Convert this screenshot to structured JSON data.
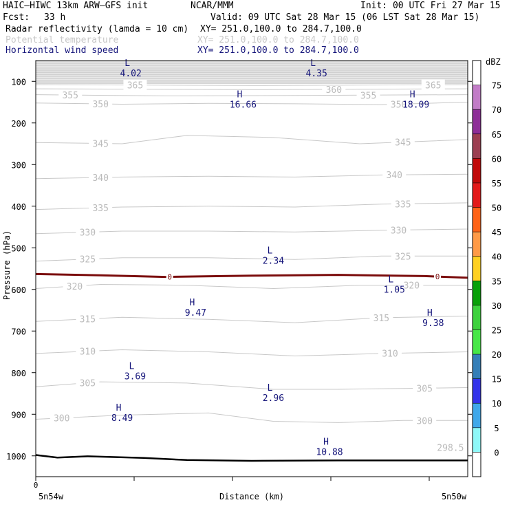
{
  "header": {
    "model": "HAIC–HIWC 13km ARW–GFS init",
    "org": "NCAR/MMM",
    "init": "Init: 00 UTC Fri 27 Mar 15",
    "fcst_label": "Fcst:",
    "fcst_value": "33 h",
    "valid": "Valid: 09 UTC Sat 28 Mar 15 (06 LST Sat 28 Mar 15)",
    "fields": [
      {
        "name": "Radar reflectivity (lamda = 10 cm)",
        "xy": "XY= 251.0,100.0 to 284.7,100.0",
        "color": "#000000"
      },
      {
        "name": "Potential temperature",
        "xy": "XY= 251.0,100.0 to 284.7,100.0",
        "color": "#c8c8c8"
      },
      {
        "name": "Horizontal wind speed",
        "xy": "XY= 251.0,100.0 to 284.7,100.0",
        "color": "#14147a"
      }
    ]
  },
  "chart_data": {
    "type": "cross-section contour",
    "ylabel": "Pressure (hPa)",
    "xlabel": "Distance (km)",
    "x_start_tick": "0",
    "x_left_label": "5n54w",
    "x_right_label": "5n50w",
    "ylim": [
      1050,
      50
    ],
    "y_ticks": [
      100,
      200,
      300,
      400,
      500,
      600,
      700,
      800,
      900,
      1000
    ],
    "theta_contours": [
      {
        "value": 300,
        "labels": [
          [
            0.06,
            300
          ],
          [
            0.9,
            300
          ]
        ],
        "points": [
          [
            0,
            0.862
          ],
          [
            0.2,
            0.852
          ],
          [
            0.4,
            0.847
          ],
          [
            0.55,
            0.867
          ],
          [
            0.7,
            0.87
          ],
          [
            0.85,
            0.865
          ],
          [
            1,
            0.865
          ]
        ]
      },
      {
        "value": 305,
        "labels": [
          [
            0.12,
            305
          ],
          [
            0.9,
            305
          ]
        ],
        "points": [
          [
            0,
            0.784
          ],
          [
            0.15,
            0.772
          ],
          [
            0.35,
            0.775
          ],
          [
            0.55,
            0.79
          ],
          [
            0.7,
            0.79
          ],
          [
            0.85,
            0.788
          ],
          [
            1,
            0.786
          ]
        ]
      },
      {
        "value": 310,
        "labels": [
          [
            0.12,
            310
          ],
          [
            0.82,
            310
          ]
        ],
        "points": [
          [
            0,
            0.704
          ],
          [
            0.2,
            0.695
          ],
          [
            0.4,
            0.7
          ],
          [
            0.6,
            0.71
          ],
          [
            0.8,
            0.704
          ],
          [
            1,
            0.7
          ]
        ]
      },
      {
        "value": 315,
        "labels": [
          [
            0.12,
            315
          ],
          [
            0.8,
            315
          ]
        ],
        "points": [
          [
            0,
            0.627
          ],
          [
            0.2,
            0.617
          ],
          [
            0.4,
            0.622
          ],
          [
            0.6,
            0.63
          ],
          [
            0.8,
            0.618
          ],
          [
            1,
            0.614
          ]
        ]
      },
      {
        "value": 320,
        "labels": [
          [
            0.09,
            320
          ],
          [
            0.87,
            320
          ]
        ],
        "points": [
          [
            0,
            0.548
          ],
          [
            0.15,
            0.538
          ],
          [
            0.35,
            0.54
          ],
          [
            0.55,
            0.548
          ],
          [
            0.75,
            0.54
          ],
          [
            1,
            0.54
          ]
        ]
      },
      {
        "value": 325,
        "labels": [
          [
            0.12,
            325
          ],
          [
            0.85,
            325
          ]
        ],
        "points": [
          [
            0,
            0.482
          ],
          [
            0.2,
            0.474
          ],
          [
            0.4,
            0.474
          ],
          [
            0.6,
            0.478
          ],
          [
            0.8,
            0.47
          ],
          [
            1,
            0.47
          ]
        ]
      },
      {
        "value": 330,
        "labels": [
          [
            0.12,
            330
          ],
          [
            0.84,
            330
          ]
        ],
        "points": [
          [
            0,
            0.416
          ],
          [
            0.2,
            0.41
          ],
          [
            0.4,
            0.41
          ],
          [
            0.6,
            0.412
          ],
          [
            0.8,
            0.408
          ],
          [
            1,
            0.405
          ]
        ]
      },
      {
        "value": 335,
        "labels": [
          [
            0.15,
            335
          ],
          [
            0.85,
            335
          ]
        ],
        "points": [
          [
            0,
            0.358
          ],
          [
            0.2,
            0.352
          ],
          [
            0.4,
            0.35
          ],
          [
            0.6,
            0.352
          ],
          [
            0.8,
            0.345
          ],
          [
            1,
            0.342
          ]
        ]
      },
      {
        "value": 340,
        "labels": [
          [
            0.15,
            340
          ],
          [
            0.83,
            340
          ]
        ],
        "points": [
          [
            0,
            0.284
          ],
          [
            0.2,
            0.28
          ],
          [
            0.4,
            0.278
          ],
          [
            0.6,
            0.28
          ],
          [
            0.8,
            0.275
          ],
          [
            1,
            0.273
          ]
        ]
      },
      {
        "value": 345,
        "labels": [
          [
            0.15,
            345
          ],
          [
            0.85,
            345
          ]
        ],
        "points": [
          [
            0,
            0.197
          ],
          [
            0.2,
            0.2
          ],
          [
            0.35,
            0.18
          ],
          [
            0.55,
            0.185
          ],
          [
            0.75,
            0.2
          ],
          [
            1,
            0.19
          ]
        ]
      },
      {
        "value": 350,
        "labels": [
          [
            0.15,
            350
          ],
          [
            0.84,
            350
          ]
        ],
        "points": [
          [
            0,
            0.102
          ],
          [
            0.2,
            0.105
          ],
          [
            0.4,
            0.103
          ],
          [
            0.6,
            0.104
          ],
          [
            0.8,
            0.106
          ],
          [
            1,
            0.1
          ]
        ]
      },
      {
        "value": 355,
        "labels": [
          [
            0.08,
            355
          ],
          [
            0.77,
            355
          ]
        ],
        "points": [
          [
            0,
            0.082
          ],
          [
            0.3,
            0.085
          ],
          [
            0.6,
            0.084
          ],
          [
            1,
            0.082
          ]
        ]
      },
      {
        "value": 360,
        "labels": [
          [
            0.69,
            360
          ]
        ],
        "points": [
          [
            0,
            0.068
          ],
          [
            0.5,
            0.07
          ],
          [
            1,
            0.068
          ]
        ]
      },
      {
        "value": 365,
        "labels": [
          [
            0.23,
            365
          ],
          [
            0.92,
            365
          ]
        ],
        "points": [
          [
            0,
            0.058
          ],
          [
            0.5,
            0.06
          ],
          [
            1,
            0.058
          ]
        ]
      },
      {
        "value": 298.5,
        "labels": [
          [
            0.96,
            298.5
          ]
        ],
        "points": []
      }
    ],
    "theta_upper_stack": {
      "from_frac": 0.0,
      "to_frac": 0.055,
      "count": 22
    },
    "freezing_line": {
      "label": "0",
      "color": "#7a0a0a",
      "label_positions": [
        0.31,
        0.93
      ],
      "points": [
        [
          0,
          0.513
        ],
        [
          0.15,
          0.516
        ],
        [
          0.3,
          0.52
        ],
        [
          0.5,
          0.517
        ],
        [
          0.7,
          0.515
        ],
        [
          0.9,
          0.518
        ],
        [
          1,
          0.522
        ]
      ]
    },
    "terrain": {
      "points": [
        [
          0,
          0.948
        ],
        [
          0.05,
          0.954
        ],
        [
          0.12,
          0.951
        ],
        [
          0.25,
          0.955
        ],
        [
          0.35,
          0.96
        ],
        [
          0.5,
          0.962
        ],
        [
          0.7,
          0.961
        ],
        [
          0.85,
          0.961
        ],
        [
          1,
          0.961
        ]
      ]
    },
    "wind_extrema": [
      {
        "type": "L",
        "value": "4.02",
        "xf": 0.22,
        "yf": 0.0
      },
      {
        "type": "L",
        "value": "4.35",
        "xf": 0.65,
        "yf": 0.0
      },
      {
        "type": "H",
        "value": "16.66",
        "xf": 0.48,
        "yf": 0.075
      },
      {
        "type": "H",
        "value": "18.09",
        "xf": 0.88,
        "yf": 0.075
      },
      {
        "type": "L",
        "value": "2.34",
        "xf": 0.55,
        "yf": 0.45
      },
      {
        "type": "L",
        "value": "1.05",
        "xf": 0.83,
        "yf": 0.52
      },
      {
        "type": "H",
        "value": "9.47",
        "xf": 0.37,
        "yf": 0.575
      },
      {
        "type": "H",
        "value": "9.38",
        "xf": 0.92,
        "yf": 0.6
      },
      {
        "type": "L",
        "value": "3.69",
        "xf": 0.23,
        "yf": 0.728
      },
      {
        "type": "L",
        "value": "2.96",
        "xf": 0.55,
        "yf": 0.78
      },
      {
        "type": "H",
        "value": "8.49",
        "xf": 0.2,
        "yf": 0.828
      },
      {
        "type": "H",
        "value": "10.88",
        "xf": 0.68,
        "yf": 0.91
      }
    ],
    "colorbar": {
      "unit": "dBZ",
      "levels": [
        "75",
        "70",
        "65",
        "60",
        "55",
        "50",
        "45",
        "40",
        "35",
        "30",
        "25",
        "20",
        "15",
        "10",
        "5",
        "0"
      ],
      "colors": [
        "#ffffff",
        "#c27cc7",
        "#8e2e98",
        "#9c3f52",
        "#c10a0a",
        "#e31a1a",
        "#ff6317",
        "#ff9a47",
        "#ffd021",
        "#08a008",
        "#3dd23d",
        "#47e747",
        "#357fb8",
        "#3434ea",
        "#40a8ea",
        "#8ef8f8",
        "#ffffff"
      ]
    }
  }
}
